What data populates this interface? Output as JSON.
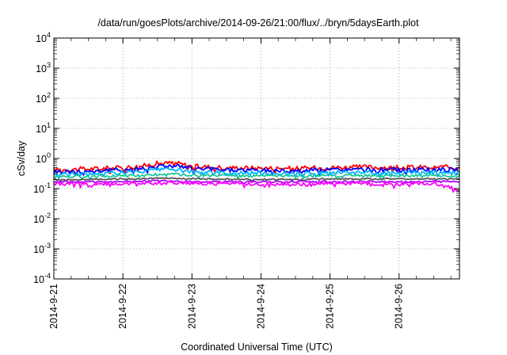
{
  "chart_data": {
    "type": "line",
    "title": "/data/run/goesPlots/archive/2014-09-26/21:00/flux/../bryn/5daysEarth.plot",
    "xlabel": "Coordinated Universal Time (UTC)",
    "ylabel": "cSv/day",
    "x_range": [
      "2014-09-21",
      "2014-09-26T21:00"
    ],
    "x_ticks": [
      "2014-9-21",
      "2014-9-22",
      "2014-9-23",
      "2014-9-24",
      "2014-9-25",
      "2014-9-26"
    ],
    "y_scale": "log",
    "ylim": [
      0.0001,
      10000
    ],
    "y_ticks": [
      {
        "base": "10",
        "exp": "-4"
      },
      {
        "base": "10",
        "exp": "-3"
      },
      {
        "base": "10",
        "exp": "-2"
      },
      {
        "base": "10",
        "exp": "-1"
      },
      {
        "base": "10",
        "exp": "0"
      },
      {
        "base": "10",
        "exp": "1"
      },
      {
        "base": "10",
        "exp": "2"
      },
      {
        "base": "10",
        "exp": "3"
      },
      {
        "base": "10",
        "exp": "4"
      }
    ],
    "grid": true,
    "series": [
      {
        "color": "#ff0000",
        "x": [
          "2014-09-21",
          "2014-09-21T12:00",
          "2014-09-22",
          "2014-09-22T06:00",
          "2014-09-22T12:00",
          "2014-09-22T18:00",
          "2014-09-23",
          "2014-09-23T12:00",
          "2014-09-24",
          "2014-09-24T12:00",
          "2014-09-25",
          "2014-09-25T12:00",
          "2014-09-26",
          "2014-09-26T12:00",
          "2014-09-26T21:00"
        ],
        "values": [
          0.42,
          0.45,
          0.5,
          0.55,
          0.68,
          0.72,
          0.55,
          0.5,
          0.48,
          0.47,
          0.5,
          0.52,
          0.5,
          0.52,
          0.5
        ]
      },
      {
        "color": "#0000ff",
        "x": [
          "2014-09-21",
          "2014-09-21T12:00",
          "2014-09-22",
          "2014-09-22T06:00",
          "2014-09-22T12:00",
          "2014-09-22T18:00",
          "2014-09-23",
          "2014-09-23T12:00",
          "2014-09-24",
          "2014-09-24T12:00",
          "2014-09-25",
          "2014-09-25T12:00",
          "2014-09-26",
          "2014-09-26T12:00",
          "2014-09-26T21:00"
        ],
        "values": [
          0.36,
          0.38,
          0.42,
          0.46,
          0.55,
          0.58,
          0.46,
          0.42,
          0.4,
          0.39,
          0.42,
          0.43,
          0.42,
          0.43,
          0.42
        ]
      },
      {
        "color": "#00b4ff",
        "x": [
          "2014-09-21",
          "2014-09-21T12:00",
          "2014-09-22",
          "2014-09-22T06:00",
          "2014-09-22T12:00",
          "2014-09-22T18:00",
          "2014-09-23",
          "2014-09-23T12:00",
          "2014-09-24",
          "2014-09-24T12:00",
          "2014-09-25",
          "2014-09-25T12:00",
          "2014-09-26",
          "2014-09-26T12:00",
          "2014-09-26T21:00"
        ],
        "values": [
          0.3,
          0.31,
          0.34,
          0.36,
          0.42,
          0.44,
          0.36,
          0.34,
          0.33,
          0.32,
          0.34,
          0.35,
          0.34,
          0.35,
          0.34
        ]
      },
      {
        "color": "#19c89b",
        "x": [
          "2014-09-21",
          "2014-09-21T12:00",
          "2014-09-22",
          "2014-09-22T06:00",
          "2014-09-22T12:00",
          "2014-09-22T18:00",
          "2014-09-23",
          "2014-09-23T12:00",
          "2014-09-24",
          "2014-09-24T12:00",
          "2014-09-25",
          "2014-09-25T12:00",
          "2014-09-26",
          "2014-09-26T12:00",
          "2014-09-26T21:00"
        ],
        "values": [
          0.25,
          0.26,
          0.27,
          0.28,
          0.3,
          0.31,
          0.28,
          0.27,
          0.26,
          0.26,
          0.27,
          0.27,
          0.27,
          0.27,
          0.27
        ]
      },
      {
        "color": "#555555",
        "x": [
          "2014-09-21",
          "2014-09-21T12:00",
          "2014-09-22",
          "2014-09-22T06:00",
          "2014-09-22T12:00",
          "2014-09-22T18:00",
          "2014-09-23",
          "2014-09-23T12:00",
          "2014-09-24",
          "2014-09-24T12:00",
          "2014-09-25",
          "2014-09-25T12:00",
          "2014-09-26",
          "2014-09-26T12:00",
          "2014-09-26T21:00"
        ],
        "values": [
          0.2,
          0.2,
          0.21,
          0.21,
          0.22,
          0.22,
          0.21,
          0.21,
          0.2,
          0.2,
          0.21,
          0.21,
          0.21,
          0.21,
          0.21
        ]
      },
      {
        "color": "#b400ff",
        "x": [
          "2014-09-21",
          "2014-09-21T12:00",
          "2014-09-22",
          "2014-09-22T06:00",
          "2014-09-22T12:00",
          "2014-09-22T18:00",
          "2014-09-23",
          "2014-09-23T12:00",
          "2014-09-24",
          "2014-09-24T12:00",
          "2014-09-25",
          "2014-09-25T12:00",
          "2014-09-26",
          "2014-09-26T12:00",
          "2014-09-26T21:00"
        ],
        "values": [
          0.17,
          0.17,
          0.17,
          0.18,
          0.18,
          0.18,
          0.17,
          0.17,
          0.17,
          0.17,
          0.17,
          0.17,
          0.17,
          0.17,
          0.17
        ]
      },
      {
        "color": "#ff00ff",
        "x": [
          "2014-09-21",
          "2014-09-21T12:00",
          "2014-09-22",
          "2014-09-22T06:00",
          "2014-09-22T12:00",
          "2014-09-22T18:00",
          "2014-09-23",
          "2014-09-23T12:00",
          "2014-09-24",
          "2014-09-24T12:00",
          "2014-09-25",
          "2014-09-25T12:00",
          "2014-09-26",
          "2014-09-26T12:00",
          "2014-09-26T21:00"
        ],
        "values": [
          0.15,
          0.14,
          0.15,
          0.15,
          0.15,
          0.16,
          0.15,
          0.15,
          0.14,
          0.14,
          0.15,
          0.15,
          0.14,
          0.15,
          0.09
        ]
      }
    ]
  }
}
